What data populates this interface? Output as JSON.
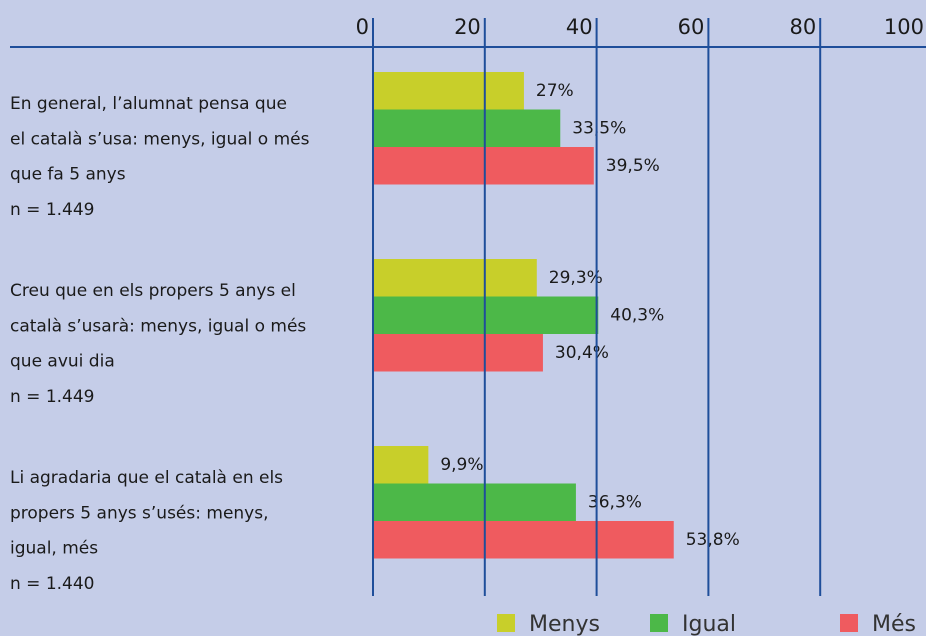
{
  "chart_data": {
    "type": "bar",
    "orientation": "horizontal",
    "categories": [
      [
        "En general, l’alumnat pensa que",
        "el català s’usa: menys, igual o més",
        "que fa 5 anys",
        "n = 1.449"
      ],
      [
        "Creu que en els propers 5 anys el",
        "català s’usarà: menys, igual o més",
        "que avui dia",
        "n = 1.449"
      ],
      [
        "Li agradaria que el català en els",
        "propers 5 anys s’usés: menys,",
        "igual, més",
        "n = 1.440"
      ]
    ],
    "series": [
      {
        "name": "Menys",
        "color": "#c8cf2a",
        "values": [
          27,
          29.3,
          9.9
        ],
        "value_labels": [
          "27%",
          "29,3%",
          "9,9%"
        ]
      },
      {
        "name": "Igual",
        "color": "#4cb848",
        "values": [
          33.5,
          40.3,
          36.3
        ],
        "value_labels": [
          "33,5%",
          "40,3%",
          "36,3%"
        ]
      },
      {
        "name": "Més",
        "color": "#ef5b5f",
        "values": [
          39.5,
          30.4,
          53.8
        ],
        "value_labels": [
          "39,5%",
          "30,4%",
          "53,8%"
        ]
      }
    ],
    "xlim": [
      0,
      100
    ],
    "xticks": [
      0,
      20,
      40,
      60,
      80,
      100
    ],
    "grid": true,
    "legend": "bottom"
  }
}
